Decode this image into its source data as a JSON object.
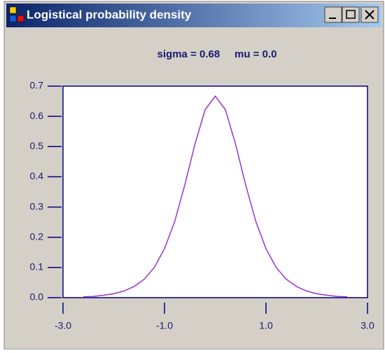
{
  "window": {
    "title": "Logistical probability density"
  },
  "chart_data": {
    "type": "line",
    "title": "sigma = 0.68     mu = 0.0",
    "x": [
      -2.6,
      -2.4,
      -2.2,
      -2.0,
      -1.8,
      -1.6,
      -1.4,
      -1.2,
      -1.0,
      -0.8,
      -0.6,
      -0.4,
      -0.2,
      0.0,
      0.2,
      0.4,
      0.6,
      0.8,
      1.0,
      1.2,
      1.4,
      1.6,
      1.8,
      2.0,
      2.2,
      2.4,
      2.6
    ],
    "series": [
      {
        "color": "#9933cc",
        "values": [
          0.003,
          0.004,
          0.008,
          0.013,
          0.022,
          0.037,
          0.061,
          0.1,
          0.162,
          0.252,
          0.373,
          0.508,
          0.622,
          0.667,
          0.622,
          0.508,
          0.373,
          0.252,
          0.162,
          0.1,
          0.061,
          0.037,
          0.022,
          0.013,
          0.008,
          0.004,
          0.003
        ]
      }
    ],
    "xlim": [
      -3.0,
      3.0
    ],
    "xticks": [
      {
        "value": -3.0,
        "label": "-3.0"
      },
      {
        "value": -1.0,
        "label": "-1.0"
      },
      {
        "value": 1.0,
        "label": "1.0"
      },
      {
        "value": 3.0,
        "label": "3.0"
      }
    ],
    "ylim": [
      0.0,
      0.7
    ],
    "yticks": [
      {
        "value": 0.0,
        "label": "0.0"
      },
      {
        "value": 0.1,
        "label": "0.1"
      },
      {
        "value": 0.2,
        "label": "0.2"
      },
      {
        "value": 0.3,
        "label": "0.3"
      },
      {
        "value": 0.4,
        "label": "0.4"
      },
      {
        "value": 0.5,
        "label": "0.5"
      },
      {
        "value": 0.6,
        "label": "0.6"
      },
      {
        "value": 0.7,
        "label": "0.7"
      }
    ]
  }
}
